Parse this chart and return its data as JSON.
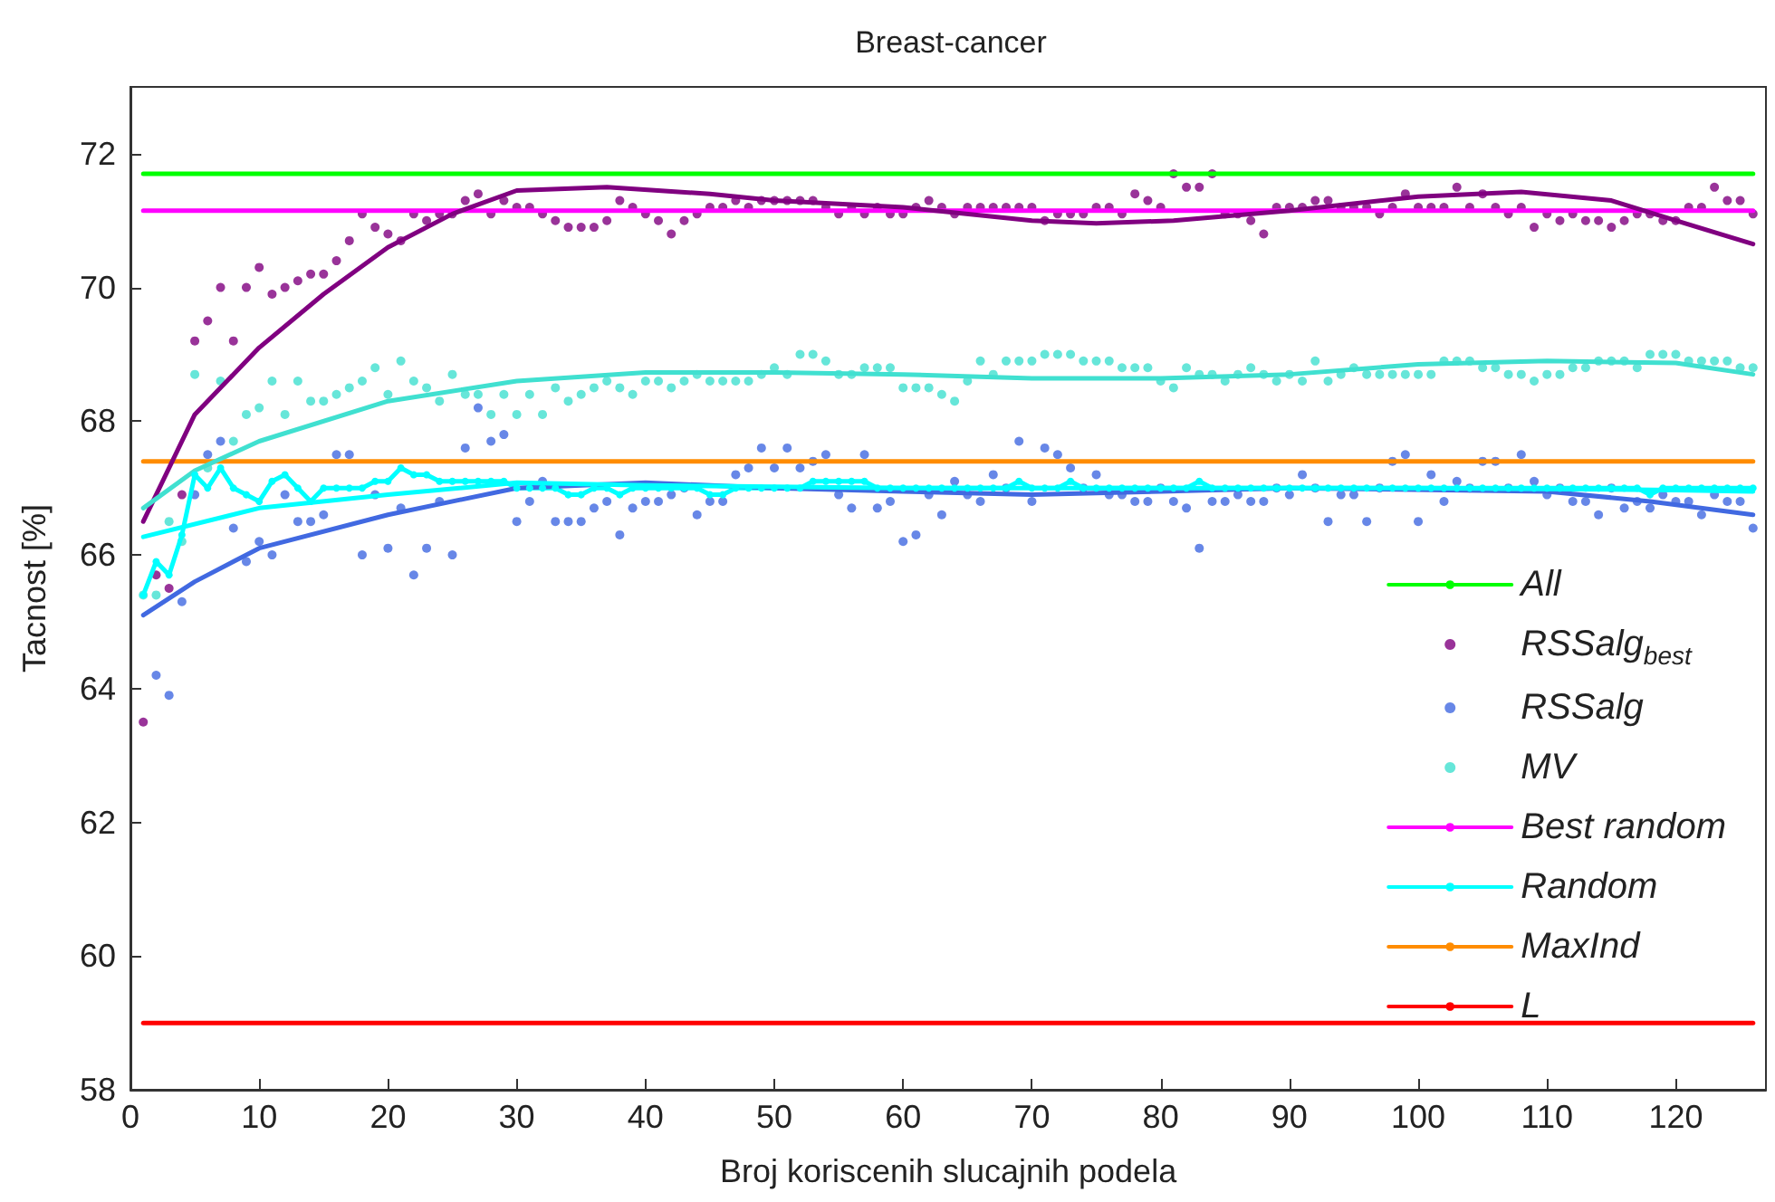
{
  "chart_data": {
    "type": "scatter",
    "title": "Breast-cancer",
    "xlabel": "Broj koriscenih slucajnih podela",
    "ylabel": "Tacnost [%]",
    "xlim": [
      0,
      127
    ],
    "xticks": [
      0,
      10,
      20,
      30,
      40,
      50,
      60,
      70,
      80,
      90,
      100,
      110,
      120
    ],
    "ylim": [
      58,
      73
    ],
    "yticks": [
      58,
      60,
      62,
      64,
      66,
      68,
      70,
      72
    ],
    "legend": "bottom right",
    "x": [
      1,
      2,
      3,
      4,
      5,
      6,
      7,
      8,
      9,
      10,
      11,
      12,
      13,
      14,
      15,
      16,
      17,
      18,
      19,
      20,
      21,
      22,
      23,
      24,
      25,
      26,
      27,
      28,
      29,
      30,
      31,
      32,
      33,
      34,
      35,
      36,
      37,
      38,
      39,
      40,
      41,
      42,
      43,
      44,
      45,
      46,
      47,
      48,
      49,
      50,
      51,
      52,
      53,
      54,
      55,
      56,
      57,
      58,
      59,
      60,
      61,
      62,
      63,
      64,
      65,
      66,
      67,
      68,
      69,
      70,
      71,
      72,
      73,
      74,
      75,
      76,
      77,
      78,
      79,
      80,
      81,
      82,
      83,
      84,
      85,
      86,
      87,
      88,
      89,
      90,
      91,
      92,
      93,
      94,
      95,
      96,
      97,
      98,
      99,
      100,
      101,
      102,
      103,
      104,
      105,
      106,
      107,
      108,
      109,
      110,
      111,
      112,
      113,
      114,
      115,
      116,
      117,
      118,
      119,
      120,
      121,
      122,
      123,
      124,
      125,
      126
    ],
    "series": [
      {
        "name": "All",
        "type": "line",
        "marker": "none",
        "color": "#00ff00",
        "x": [
          1,
          126
        ],
        "values": [
          71.7,
          71.7
        ]
      },
      {
        "name": "RSSalg$_{best}$",
        "marker": "circle",
        "color": "#800080",
        "values": [
          63.5,
          65.7,
          65.5,
          66.9,
          69.2,
          69.5,
          70.0,
          69.2,
          70.0,
          70.3,
          69.9,
          70.0,
          70.1,
          70.2,
          70.2,
          70.4,
          70.7,
          71.1,
          70.9,
          70.8,
          70.7,
          71.1,
          71.0,
          71.1,
          71.1,
          71.3,
          71.4,
          71.1,
          71.3,
          71.2,
          71.2,
          71.1,
          71.0,
          70.9,
          70.9,
          70.9,
          71.0,
          71.3,
          71.2,
          71.1,
          71.0,
          70.8,
          71.0,
          71.1,
          71.2,
          71.2,
          71.3,
          71.2,
          71.3,
          71.3,
          71.3,
          71.3,
          71.3,
          71.2,
          71.1,
          71.2,
          71.1,
          71.2,
          71.1,
          71.1,
          71.2,
          71.3,
          71.2,
          71.1,
          71.2,
          71.2,
          71.2,
          71.2,
          71.2,
          71.2,
          71.0,
          71.1,
          71.1,
          71.1,
          71.2,
          71.2,
          71.1,
          71.4,
          71.3,
          71.2,
          71.7,
          71.5,
          71.5,
          71.7,
          71.1,
          71.1,
          71.0,
          70.8,
          71.2,
          71.2,
          71.2,
          71.3,
          71.3,
          71.2,
          71.2,
          71.2,
          71.1,
          71.2,
          71.4,
          71.2,
          71.2,
          71.2,
          71.5,
          71.2,
          71.4,
          71.2,
          71.1,
          71.2,
          70.9,
          71.1,
          71.0,
          71.1,
          71.0,
          71.0,
          70.9,
          71.0,
          71.1,
          71.1,
          71.0,
          71.0,
          71.2,
          71.2,
          71.5,
          71.3,
          71.3,
          71.1
        ]
      },
      {
        "name": "RSSalg",
        "marker": "circle",
        "color": "#4169e1",
        "values": [
          null,
          64.2,
          63.9,
          65.3,
          66.9,
          67.5,
          67.7,
          66.4,
          65.9,
          66.2,
          66.0,
          66.9,
          66.5,
          66.5,
          66.6,
          67.5,
          67.5,
          66.0,
          66.9,
          66.1,
          66.7,
          65.7,
          66.1,
          66.8,
          66.0,
          67.6,
          68.2,
          67.7,
          67.8,
          66.5,
          66.8,
          67.1,
          66.5,
          66.5,
          66.5,
          66.7,
          66.8,
          66.3,
          66.7,
          66.8,
          66.8,
          66.9,
          67.0,
          66.6,
          66.8,
          66.8,
          67.2,
          67.3,
          67.6,
          67.3,
          67.6,
          67.3,
          67.4,
          67.5,
          66.9,
          66.7,
          67.5,
          66.7,
          66.8,
          66.2,
          66.3,
          66.9,
          66.6,
          67.1,
          66.9,
          66.8,
          67.2,
          67.0,
          67.7,
          66.8,
          67.6,
          67.5,
          67.3,
          67.0,
          67.2,
          66.9,
          66.9,
          66.8,
          66.8,
          67.0,
          66.8,
          66.7,
          66.1,
          66.8,
          66.8,
          66.9,
          66.8,
          66.8,
          67.0,
          66.9,
          67.2,
          67.0,
          66.5,
          66.9,
          66.9,
          66.5,
          67.0,
          67.4,
          67.5,
          66.5,
          67.2,
          66.8,
          67.1,
          67.0,
          67.4,
          67.4,
          67.0,
          67.5,
          67.1,
          66.9,
          67.0,
          66.8,
          66.8,
          66.6,
          67.0,
          66.7,
          66.8,
          66.7,
          66.9,
          66.8,
          66.8,
          66.6,
          66.9,
          66.8,
          66.8,
          66.4
        ]
      },
      {
        "name": "MV",
        "marker": "circle",
        "color": "#40e0d0",
        "values": [
          65.4,
          65.4,
          66.5,
          66.2,
          68.7,
          67.3,
          68.6,
          67.7,
          68.1,
          68.2,
          68.6,
          68.1,
          68.6,
          68.3,
          68.3,
          68.4,
          68.5,
          68.6,
          68.8,
          68.4,
          68.9,
          68.6,
          68.5,
          68.3,
          68.7,
          68.4,
          68.4,
          68.1,
          68.4,
          68.1,
          68.4,
          68.1,
          68.5,
          68.3,
          68.4,
          68.5,
          68.6,
          68.5,
          68.4,
          68.6,
          68.6,
          68.5,
          68.6,
          68.7,
          68.6,
          68.6,
          68.6,
          68.6,
          68.7,
          68.8,
          68.7,
          69.0,
          69.0,
          68.9,
          68.7,
          68.7,
          68.8,
          68.8,
          68.8,
          68.5,
          68.5,
          68.5,
          68.4,
          68.3,
          68.6,
          68.9,
          68.7,
          68.9,
          68.9,
          68.9,
          69.0,
          69.0,
          69.0,
          68.9,
          68.9,
          68.9,
          68.8,
          68.8,
          68.8,
          68.6,
          68.5,
          68.8,
          68.7,
          68.7,
          68.6,
          68.7,
          68.8,
          68.7,
          68.6,
          68.7,
          68.6,
          68.9,
          68.6,
          68.7,
          68.8,
          68.7,
          68.7,
          68.7,
          68.7,
          68.7,
          68.7,
          68.9,
          68.9,
          68.9,
          68.8,
          68.8,
          68.7,
          68.7,
          68.6,
          68.7,
          68.7,
          68.8,
          68.8,
          68.9,
          68.9,
          68.9,
          68.8,
          69.0,
          69.0,
          69.0,
          68.9,
          68.9,
          68.9,
          68.9,
          68.8,
          68.8
        ]
      },
      {
        "name": "Best random",
        "type": "line",
        "marker": "none",
        "color": "#ff00ff",
        "x": [
          1,
          126
        ],
        "values": [
          71.15,
          71.15
        ]
      },
      {
        "name": "Random",
        "type": "line",
        "marker": "circle",
        "color": "#00ffff",
        "values": [
          65.4,
          65.9,
          65.7,
          66.3,
          67.2,
          67.0,
          67.3,
          67.0,
          66.9,
          66.8,
          67.1,
          67.2,
          67.0,
          66.8,
          67.0,
          67.0,
          67.0,
          67.0,
          67.1,
          67.1,
          67.3,
          67.2,
          67.2,
          67.1,
          67.1,
          67.1,
          67.1,
          67.1,
          67.1,
          67.0,
          67.0,
          67.0,
          67.0,
          66.9,
          66.9,
          67.0,
          67.0,
          66.9,
          67.0,
          67.0,
          67.0,
          67.0,
          67.0,
          67.0,
          66.9,
          66.9,
          67.0,
          67.0,
          67.0,
          67.0,
          67.0,
          67.0,
          67.1,
          67.1,
          67.1,
          67.1,
          67.1,
          67.0,
          67.0,
          67.0,
          67.0,
          67.0,
          67.0,
          67.0,
          67.0,
          67.0,
          67.0,
          67.0,
          67.1,
          67.0,
          67.0,
          67.0,
          67.1,
          67.0,
          67.0,
          67.0,
          67.0,
          67.0,
          67.0,
          67.0,
          67.0,
          67.0,
          67.1,
          67.0,
          67.0,
          67.0,
          67.0,
          67.0,
          67.0,
          67.0,
          67.0,
          67.0,
          67.0,
          67.0,
          67.0,
          67.0,
          67.0,
          67.0,
          67.0,
          67.0,
          67.0,
          67.0,
          67.0,
          67.0,
          67.0,
          67.0,
          67.0,
          67.0,
          67.0,
          67.0,
          67.0,
          67.0,
          67.0,
          67.0,
          67.0,
          67.0,
          67.0,
          66.9,
          67.0,
          67.0,
          67.0,
          67.0,
          67.0,
          67.0,
          67.0,
          67.0
        ]
      },
      {
        "name": "MaxInd",
        "type": "line",
        "marker": "none",
        "color": "#ff8c00",
        "x": [
          1,
          126
        ],
        "values": [
          67.4,
          67.4
        ]
      },
      {
        "name": "L",
        "type": "line",
        "marker": "none",
        "color": "#ff0000",
        "x": [
          1,
          126
        ],
        "values": [
          59.0,
          59.0
        ]
      },
      {
        "type": "line",
        "marker": "none",
        "color": "#800080",
        "x": [
          1,
          5,
          10,
          15,
          20,
          25,
          30,
          37,
          45,
          50,
          60,
          70,
          75,
          81,
          90,
          100,
          108,
          115,
          120,
          126
        ],
        "values": [
          66.5,
          68.1,
          69.1,
          69.9,
          70.6,
          71.1,
          71.45,
          71.5,
          71.4,
          71.3,
          71.2,
          71.0,
          70.96,
          71.0,
          71.15,
          71.36,
          71.43,
          71.3,
          71.0,
          70.65
        ]
      },
      {
        "type": "line",
        "marker": "none",
        "color": "#4169e1",
        "x": [
          1,
          5,
          10,
          20,
          30,
          40,
          50,
          60,
          70,
          80,
          90,
          110,
          118,
          126
        ],
        "values": [
          65.1,
          65.6,
          66.1,
          66.6,
          67.0,
          67.08,
          67.0,
          66.95,
          66.9,
          66.95,
          67.0,
          66.95,
          66.8,
          66.6
        ]
      },
      {
        "type": "line",
        "marker": "none",
        "color": "#40e0d0",
        "x": [
          1,
          5,
          10,
          20,
          30,
          40,
          50,
          60,
          70,
          80,
          90,
          100,
          110,
          120,
          126
        ],
        "values": [
          66.7,
          67.26,
          67.7,
          68.3,
          68.6,
          68.73,
          68.73,
          68.7,
          68.64,
          68.64,
          68.7,
          68.85,
          68.9,
          68.87,
          68.7
        ]
      },
      {
        "type": "line",
        "marker": "none",
        "color": "#00ffff",
        "x": [
          1,
          10,
          20,
          30,
          40,
          60,
          80,
          100,
          120,
          126
        ],
        "values": [
          66.27,
          66.7,
          66.9,
          67.08,
          67.04,
          67.0,
          67.0,
          67.0,
          66.97,
          66.95
        ]
      }
    ]
  }
}
